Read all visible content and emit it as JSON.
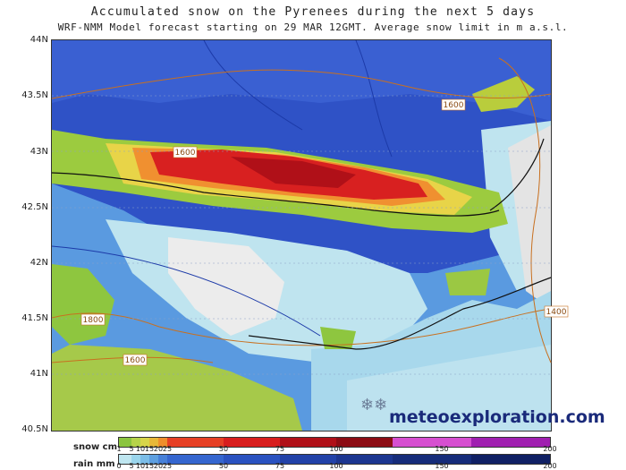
{
  "title": "Accumulated snow on the Pyrenees during the next 5 days",
  "subtitle": "WRF-NMM Model forecast starting on 29 MAR 12GMT.  Average snow limit in m a.s.l.",
  "latitude_labels": [
    "44N",
    "43.5N",
    "43N",
    "42.5N",
    "42N",
    "41.5N",
    "41N",
    "40.5N"
  ],
  "snow_limit_labels": [
    "1600",
    "1600",
    "1800",
    "1600",
    "1400"
  ],
  "credit": "meteoexploration.com",
  "snowflake_icon": "snowflake-icon",
  "legend": {
    "snow_label": "snow cm",
    "rain_label": "rain mm",
    "snow_ticks": [
      "1",
      "5",
      "10",
      "15",
      "20",
      "25",
      "50",
      "75",
      "100",
      "150",
      "200"
    ],
    "rain_ticks": [
      "0",
      "5",
      "10",
      "15",
      "20",
      "25",
      "50",
      "75",
      "100",
      "150",
      "200"
    ],
    "snow_colors": [
      "#8bc53f",
      "#b6d34a",
      "#d8d54a",
      "#e8b838",
      "#ef8e2c",
      "#e64025",
      "#d81e1e",
      "#b01018",
      "#8c0c14",
      "#d64fd0",
      "#a020b0",
      "#6a00a0"
    ],
    "rain_colors": [
      "#bfe6f0",
      "#9ad5ec",
      "#7bbde8",
      "#5d9fe0",
      "#4680d8",
      "#3566cf",
      "#2a52c0",
      "#2242a8",
      "#1c3690",
      "#162c7a",
      "#102064"
    ]
  }
}
